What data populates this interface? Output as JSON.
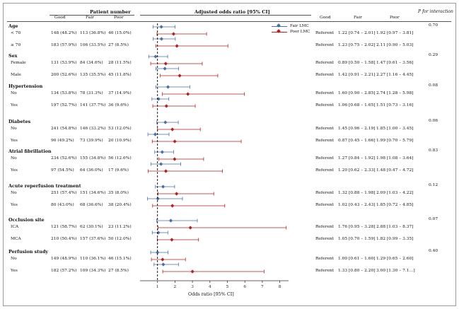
{
  "headers": {
    "patient_number": "Patient number",
    "adjusted_or": "Adjusted odds ratio [95% CI]",
    "p_interaction": "P for interaction",
    "good": "Good",
    "fair": "Fair",
    "poor": "Poor",
    "or_good": "Good",
    "or_fair": "Fair",
    "or_poor": "Poor"
  },
  "colors": {
    "fair": "#4a6fa5",
    "poor": "#b22222",
    "ref_line": "#000000"
  },
  "chart_data": {
    "type": "forest",
    "xlabel": "Odds ratio [95% CI]",
    "xlim": [
      0,
      8.5
    ],
    "xticks": [
      "1",
      "2",
      "3",
      "4",
      "5",
      "6",
      "7",
      "8"
    ],
    "reference_line": 1,
    "legend_placement": "top-right",
    "series": [
      {
        "name": "Fair LMC",
        "key": "fair"
      },
      {
        "name": "Poor LMC",
        "key": "poor"
      }
    ],
    "groups": [
      {
        "label": "Age",
        "p": "0.70",
        "rows": [
          {
            "label": "< 70",
            "good": "148 (48.2%)",
            "fair": "113 (36.8%)",
            "poor": "46 (15.0%)",
            "ref": "Referent",
            "fair_txt": "1.22 [0.74 – 2.01]",
            "poor_txt": "1.92 [0.97 – 3.81]",
            "fair_or": [
              1.22,
              0.74,
              2.01
            ],
            "poor_or": [
              1.92,
              0.97,
              3.81
            ]
          },
          {
            "label": "≥ 70",
            "good": "183 (57.9%)",
            "fair": "106 (33.5%)",
            "poor": "27 (8.5%)",
            "ref": "Referent",
            "fair_txt": "1.23 [0.75 – 2.02]",
            "poor_txt": "2.11 [0.90 – 5.03]",
            "fair_or": [
              1.23,
              0.75,
              2.02
            ],
            "poor_or": [
              2.11,
              0.9,
              5.03
            ]
          }
        ]
      },
      {
        "label": "Sex",
        "p": "0.29",
        "rows": [
          {
            "label": "Female",
            "good": "131 (53.9%)",
            "fair": "84 (34.6%)",
            "poor": "28 (11.5%)",
            "ref": "Referent",
            "fair_txt": "0.89 [0.50 – 1.58]",
            "poor_txt": "1.47 [0.61 – 3.56]",
            "fair_or": [
              0.89,
              0.5,
              1.58
            ],
            "poor_or": [
              1.47,
              0.61,
              3.56
            ]
          },
          {
            "label": "Male",
            "good": "200 (52.6%)",
            "fair": "135 (35.5%)",
            "poor": "45 (11.8%)",
            "ref": "Referent",
            "fair_txt": "1.42 [0.91 – 2.21]",
            "poor_txt": "2.27 [1.16 – 4.45]",
            "fair_or": [
              1.42,
              0.91,
              2.21
            ],
            "poor_or": [
              2.27,
              1.16,
              4.45
            ]
          }
        ]
      },
      {
        "label": "Hypertension",
        "p": "0.08",
        "rows": [
          {
            "label": "No",
            "good": "134 (53.8%)",
            "fair": "78 (31.3%)",
            "poor": "37 (14.9%)",
            "ref": "Referent",
            "fair_txt": "1.60 [0.90 – 2.85]",
            "poor_txt": "2.74 [1.28 – 5.98]",
            "fair_or": [
              1.6,
              0.9,
              2.85
            ],
            "poor_or": [
              2.74,
              1.28,
              5.98
            ]
          },
          {
            "label": "Yes",
            "good": "197 (52.7%)",
            "fair": "141 (37.7%)",
            "poor": "36 (9.6%)",
            "ref": "Referent",
            "fair_txt": "1.06 [0.68 – 1.65]",
            "poor_txt": "1.51 [0.73 – 3.16]",
            "fair_or": [
              1.06,
              0.68,
              1.65
            ],
            "poor_or": [
              1.51,
              0.73,
              3.16
            ]
          }
        ]
      },
      {
        "label": "Diabetes",
        "p": "0.06",
        "rows": [
          {
            "label": "No",
            "good": "241 (54.8%)",
            "fair": "146 (33.2%)",
            "poor": "53 (12.0%)",
            "ref": "Referent",
            "fair_txt": "1.45 [0.96 – 2.19]",
            "poor_txt": "1.85 [1.00 – 3.45]",
            "fair_or": [
              1.45,
              0.96,
              2.19
            ],
            "poor_or": [
              1.85,
              1.0,
              3.45
            ]
          },
          {
            "label": "Yes",
            "good": "90 (49.2%)",
            "fair": "73 (39.9%)",
            "poor": "20 (10.9%)",
            "ref": "Referent",
            "fair_txt": "0.87 [0.45 – 1.66]",
            "poor_txt": "1.99 [0.70 – 5.79]",
            "fair_or": [
              0.87,
              0.45,
              1.66
            ],
            "poor_or": [
              1.99,
              0.7,
              5.79
            ]
          }
        ]
      },
      {
        "label": "Atrial fibrillation",
        "p": "0.83",
        "rows": [
          {
            "label": "No",
            "good": "234 (52.6%)",
            "fair": "155 (34.8%)",
            "poor": "56 (12.6%)",
            "ref": "Referent",
            "fair_txt": "1.27 [0.84 – 1.92]",
            "poor_txt": "1.98 [1.08 – 3.64]",
            "fair_or": [
              1.27,
              0.84,
              1.92
            ],
            "poor_or": [
              1.98,
              1.08,
              3.64
            ]
          },
          {
            "label": "Yes",
            "good": "97 (54.5%)",
            "fair": "64 (36.0%)",
            "poor": "17 (9.6%)",
            "ref": "Referent",
            "fair_txt": "1.20 [0.62 – 2.33]",
            "poor_txt": "1.48 [0.47 – 4.72]",
            "fair_or": [
              1.2,
              0.62,
              2.33
            ],
            "poor_or": [
              1.48,
              0.47,
              4.72
            ]
          }
        ]
      },
      {
        "label": "Acute reperfusion treatment",
        "p": "0.12",
        "rows": [
          {
            "label": "No",
            "good": "251 (57.4%)",
            "fair": "151 (34.6%)",
            "poor": "35 (8.0%)",
            "ref": "Referent",
            "fair_txt": "1.32 [0.88 – 1.98]",
            "poor_txt": "2.09 [1.03 – 4.22]",
            "fair_or": [
              1.32,
              0.88,
              1.98
            ],
            "poor_or": [
              2.09,
              1.03,
              4.22
            ]
          },
          {
            "label": "Yes",
            "good": "80 (43.0%)",
            "fair": "68 (36.6%)",
            "poor": "38 (20.4%)",
            "ref": "Referent",
            "fair_txt": "1.02 [0.43 – 2.43]",
            "poor_txt": "1.85 [0.72 – 4.85]",
            "fair_or": [
              1.02,
              0.43,
              2.43
            ],
            "poor_or": [
              1.85,
              0.72,
              4.85
            ]
          }
        ]
      },
      {
        "label": "Occlusion site",
        "p": "0.07",
        "rows": [
          {
            "label": "ICA",
            "good": "121 (58.7%)",
            "fair": "62 (30.1%)",
            "poor": "23 (11.2%)",
            "ref": "Referent",
            "fair_txt": "1.76 [0.95 – 3.28]",
            "poor_txt": "2.88 [1.03 – 8.37]",
            "fair_or": [
              1.76,
              0.95,
              3.28
            ],
            "poor_or": [
              2.88,
              1.03,
              8.37
            ]
          },
          {
            "label": "MCA",
            "good": "210 (50.4%)",
            "fair": "157 (37.6%)",
            "poor": "50 (12.0%)",
            "ref": "Referent",
            "fair_txt": "1.05 [0.70 – 1.59]",
            "poor_txt": "1.82 [0.99 – 3.35]",
            "fair_or": [
              1.05,
              0.7,
              1.59
            ],
            "poor_or": [
              1.82,
              0.99,
              3.35
            ]
          }
        ]
      },
      {
        "label": "Perfusion study",
        "p": "0.40",
        "rows": [
          {
            "label": "No",
            "good": "149 (48.9%)",
            "fair": "110 (36.1%)",
            "poor": "46 (15.1%)",
            "ref": "Referent",
            "fair_txt": "1.00 [0.61 – 1.60]",
            "poor_txt": "1.29 [0.65 – 2.60]",
            "fair_or": [
              1.0,
              0.61,
              1.6
            ],
            "poor_or": [
              1.29,
              0.65,
              2.6
            ]
          },
          {
            "label": "Yes",
            "good": "182 (57.2%)",
            "fair": "109 (34.3%)",
            "poor": "27 (8.5%)",
            "ref": "Referent",
            "fair_txt": "1.33 [0.80 – 2.20]",
            "poor_txt": "3.00 [1.30 – 7.1…]",
            "fair_or": [
              1.33,
              0.8,
              2.2
            ],
            "poor_or": [
              3.0,
              1.3,
              7.1
            ]
          }
        ]
      }
    ]
  }
}
